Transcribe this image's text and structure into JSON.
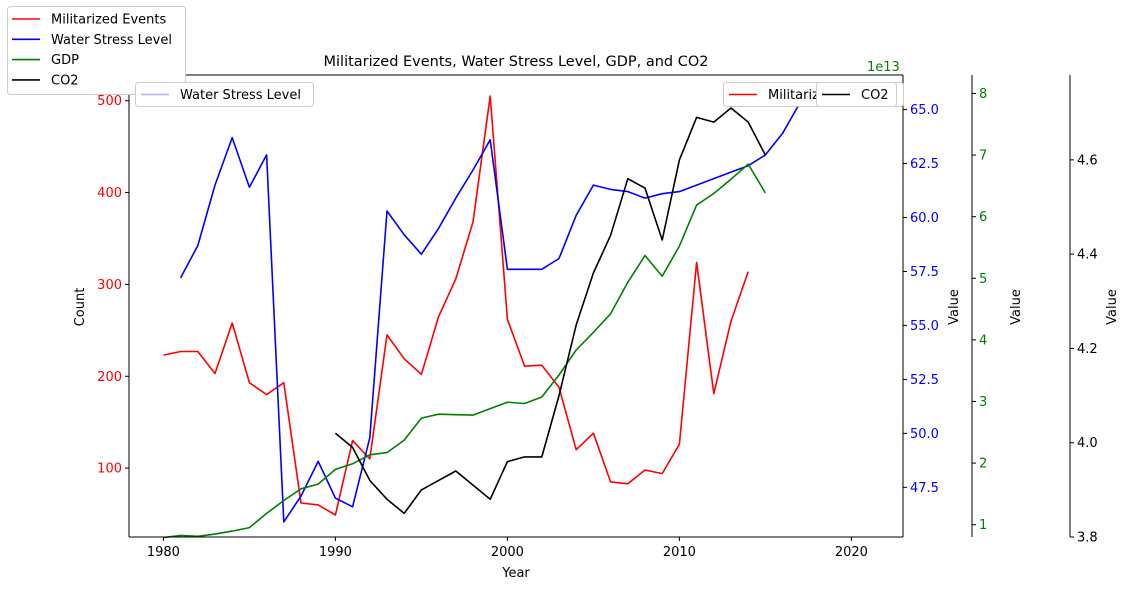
{
  "chart_data": {
    "type": "line",
    "title": "Militarized Events, Water Stress Level, GDP, and CO2",
    "xlabel": "Year",
    "ylabel_left": "Count",
    "ylabel_right": "Value",
    "xlim": [
      1978,
      2023
    ],
    "x_ticks": [
      1980,
      1990,
      2000,
      2010,
      2020
    ],
    "colors": {
      "militarized": "#ff0000",
      "water": "#0000ff",
      "gdp": "#008000",
      "co2": "#000000"
    },
    "outer_legend": [
      "Militarized Events",
      "Water Stress Level",
      "GDP",
      "CO2"
    ],
    "inner_legends": {
      "water": "Water Stress Level",
      "militarized": "Militarized Events",
      "co2": "CO2"
    },
    "axes": {
      "count": {
        "ylim": [
          25,
          528
        ],
        "ticks": [
          100,
          200,
          300,
          400,
          500
        ]
      },
      "water": {
        "ylim": [
          45.2,
          66.6
        ],
        "ticks": [
          47.5,
          50.0,
          52.5,
          55.0,
          57.5,
          60.0,
          62.5,
          65.0
        ],
        "offset_text": "1e13"
      },
      "gdp": {
        "ylim": [
          0.8,
          8.3
        ],
        "ticks": [
          1,
          2,
          3,
          4,
          5,
          6,
          7,
          8
        ]
      },
      "co2": {
        "ylim": [
          3.8,
          4.78
        ],
        "ticks": [
          3.8,
          4.0,
          4.2,
          4.4,
          4.6
        ]
      }
    },
    "series": [
      {
        "key": "militarized",
        "name": "Militarized Events",
        "axis": "count",
        "x": [
          1980,
          1981,
          1982,
          1983,
          1984,
          1985,
          1986,
          1987,
          1988,
          1989,
          1990,
          1991,
          1992,
          1993,
          1994,
          1995,
          1996,
          1997,
          1998,
          1999,
          2000,
          2001,
          2002,
          2003,
          2004,
          2005,
          2006,
          2007,
          2008,
          2009,
          2010,
          2011,
          2012,
          2013,
          2014
        ],
        "y": [
          223,
          227,
          227,
          203,
          258,
          193,
          180,
          193,
          62,
          60,
          49,
          130,
          110,
          245,
          219,
          202,
          265,
          306,
          368,
          505,
          262,
          211,
          212,
          188,
          120,
          138,
          85,
          83,
          98,
          94,
          126,
          324,
          181,
          260,
          314
        ]
      },
      {
        "key": "water",
        "name": "Water Stress Level",
        "axis": "water",
        "x": [
          1981,
          1982,
          1983,
          1984,
          1985,
          1986,
          1987,
          1988,
          1989,
          1990,
          1991,
          1992,
          1993,
          1994,
          1995,
          1996,
          1997,
          1998,
          1999,
          2000,
          2001,
          2002,
          2003,
          2004,
          2005,
          2006,
          2007,
          2008,
          2009,
          2010,
          2011,
          2012,
          2013,
          2014,
          2015,
          2016,
          2017,
          2018,
          2019
        ],
        "y": [
          57.2,
          58.7,
          61.5,
          63.7,
          61.4,
          62.9,
          45.9,
          47.1,
          48.7,
          47.0,
          46.6,
          49.8,
          60.3,
          59.2,
          58.3,
          59.5,
          60.9,
          62.2,
          63.6,
          57.6,
          57.6,
          57.6,
          58.1,
          60.1,
          61.5,
          61.3,
          61.2,
          60.9,
          61.1,
          61.2,
          61.5,
          61.8,
          62.1,
          62.4,
          62.9,
          63.9,
          65.3,
          65.6,
          65.7
        ]
      },
      {
        "key": "gdp",
        "name": "GDP",
        "axis": "gdp",
        "x": [
          1980,
          1981,
          1982,
          1983,
          1984,
          1985,
          1986,
          1987,
          1988,
          1989,
          1990,
          1991,
          1992,
          1993,
          1994,
          1995,
          1996,
          1997,
          1998,
          1999,
          2000,
          2001,
          2002,
          2003,
          2004,
          2005,
          2006,
          2007,
          2008,
          2009,
          2010,
          2011,
          2012,
          2013,
          2014,
          2015
        ],
        "y": [
          1.13,
          1.18,
          1.16,
          1.21,
          1.28,
          1.36,
          1.69,
          1.99,
          2.26,
          2.37,
          2.71,
          2.84,
          3.05,
          3.1,
          3.39,
          3.9,
          3.99,
          3.98,
          3.97,
          4.12,
          4.27,
          4.24,
          4.39,
          4.9,
          5.48,
          5.89,
          6.32,
          7.05,
          7.67,
          7.19,
          7.89,
          8.84,
          9.11,
          9.44,
          9.79,
          9.12
        ],
        "y_scale": 0.7
      },
      {
        "key": "co2",
        "name": "CO2",
        "axis": "co2",
        "x": [
          1990,
          1991,
          1992,
          1993,
          1994,
          1995,
          1996,
          1997,
          1998,
          1999,
          2000,
          2001,
          2002,
          2003,
          2004,
          2005,
          2006,
          2007,
          2008,
          2009,
          2010,
          2011,
          2012,
          2013,
          2014,
          2015
        ],
        "y": [
          4.02,
          3.99,
          3.92,
          3.88,
          3.85,
          3.9,
          3.92,
          3.94,
          3.91,
          3.88,
          3.96,
          3.97,
          3.97,
          4.1,
          4.25,
          4.36,
          4.44,
          4.56,
          4.54,
          4.43,
          4.6,
          4.69,
          4.68,
          4.71,
          4.68,
          4.61
        ]
      }
    ]
  }
}
